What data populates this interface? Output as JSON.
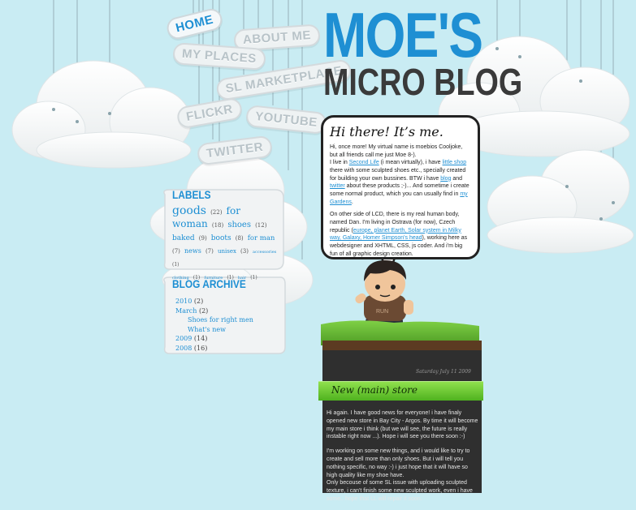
{
  "header": {
    "title_line1": "MOE'S",
    "title_line2": "MICRO BLOG"
  },
  "nav": {
    "home": "HOME",
    "about": "ABOUT ME",
    "places": "MY PLACES",
    "marketplace": "SL MARKETPLACE",
    "flickr": "FLICKR",
    "youtube": "YOUTUBE",
    "twitter": "TWITTER"
  },
  "intro": {
    "heading": "Hi there! It’s me.",
    "p1_a": "Hi, once more! My virtual name is moebios Cooljoke, but all friends call me just Moe 8-).",
    "p1_b": "I live in ",
    "link_second_life": "Second Life",
    "p1_c": " (i mean virtually), i have ",
    "link_little_shop": "little shop",
    "p1_d": " there with some sculpted shoes etc., specially created for building your own bussines. BTW i have ",
    "link_blog": "blog",
    "p1_e": " and ",
    "link_twitter": "twitter",
    "p1_f": " about these products ;-)... And sometime i create some normal product, which you can usually find in ",
    "link_gardens": "my Gardens",
    "p1_g": ".",
    "p2_a": "On other side of LCD, there is my real human body, named Dan. I'm living in Ostrava (for now), Czech republic (",
    "link_location": "europe, planet Earth, Solar system in Milky way, Galaxy, Homer Simpson's head",
    "p2_b": "), working here as webdesigner and XHTML, CSS, js coder. And i'm big fun of all graphic design creation."
  },
  "labels": {
    "title": "LABELS",
    "goods": "goods",
    "goods_count": "(22)",
    "for_woman": "for woman",
    "for_woman_count": "(18)",
    "shoes": "shoes",
    "shoes_count": "(12)",
    "baked": "baked",
    "baked_count": "(9)",
    "boots": "boots",
    "boots_count": "(8)",
    "for_man": "for man",
    "for_man_count": "(7)",
    "news": "news",
    "news_count": "(7)",
    "unisex": "unisex",
    "unisex_count": "(3)",
    "accessories": "accessories",
    "accessories_count": "(1)",
    "clothing": "clothing",
    "clothing_count": "(1)",
    "furniture": "furniture",
    "furniture_count": "(1)",
    "hair": "hair",
    "hair_count": "(1)"
  },
  "archive": {
    "title": "BLOG ARCHIVE",
    "y2010": "2010",
    "y2010_count": "(2)",
    "march": "March",
    "march_count": "(2)",
    "post1": "Shoes for right men",
    "post2": "What's new",
    "y2009": "2009",
    "y2009_count": "(14)",
    "y2008": "2008",
    "y2008_count": "(16)"
  },
  "post": {
    "date": "Saturday July 11 2009",
    "title": "New (main) store",
    "p1": "Hi again. I have good news for everyone! i have finaly opened new store in Bay City - Argos. By time it will become my main store i think (but we will see, the future is really instable right now ...). Hope i will see you there soon :-)",
    "p2": "I'm working on some new things, and i would like to try to create and sell more than only shoes. But i will tell you nothing specific, no way :-) i just hope that it will have so high quality like my shoe have.",
    "p3": "Only becouse of some SL issue with uploading sculpted texture, i can't finish some new sculpted work, even i have some.. hope that LL will repair it soon."
  },
  "colors": {
    "sky": "#c9ecf3",
    "accent_blue": "#1e8fd3",
    "grass": "#6cc23a",
    "dark_panel": "#2f2f2f"
  }
}
